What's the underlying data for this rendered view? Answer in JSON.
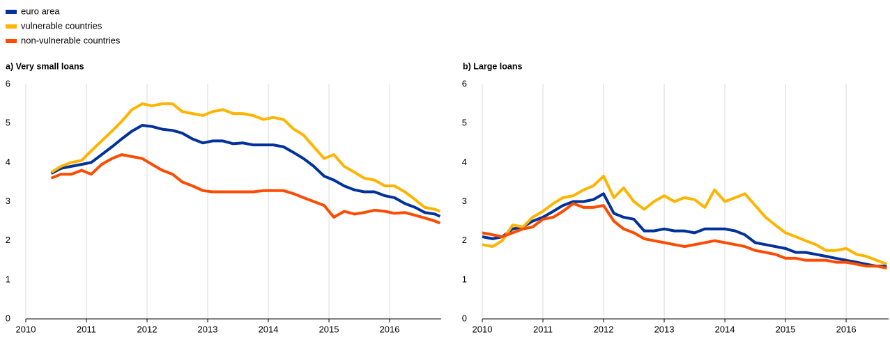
{
  "chart_data": [
    {
      "type": "line",
      "title": "a) Very small loans",
      "x": [
        2010.42,
        2010.58,
        2010.75,
        2010.92,
        2011.08,
        2011.25,
        2011.42,
        2011.58,
        2011.75,
        2011.92,
        2012.08,
        2012.25,
        2012.42,
        2012.58,
        2012.75,
        2012.92,
        2013.08,
        2013.25,
        2013.42,
        2013.58,
        2013.75,
        2013.92,
        2014.08,
        2014.25,
        2014.42,
        2014.58,
        2014.75,
        2014.92,
        2015.08,
        2015.25,
        2015.42,
        2015.58,
        2015.75,
        2015.92,
        2016.08,
        2016.25,
        2016.42,
        2016.58,
        2016.75,
        2016.83
      ],
      "series": [
        {
          "name": "euro area",
          "color": "#003299",
          "values": [
            3.72,
            3.85,
            3.9,
            3.95,
            4.0,
            4.2,
            4.4,
            4.6,
            4.8,
            4.95,
            4.92,
            4.85,
            4.82,
            4.75,
            4.6,
            4.5,
            4.55,
            4.55,
            4.48,
            4.5,
            4.45,
            4.45,
            4.45,
            4.4,
            4.25,
            4.1,
            3.9,
            3.65,
            3.55,
            3.4,
            3.3,
            3.25,
            3.25,
            3.15,
            3.1,
            2.95,
            2.85,
            2.72,
            2.68,
            2.62
          ]
        },
        {
          "name": "vulnerable countries",
          "color": "#ffb400",
          "values": [
            3.75,
            3.9,
            4.0,
            4.05,
            4.3,
            4.55,
            4.8,
            5.05,
            5.35,
            5.5,
            5.45,
            5.5,
            5.5,
            5.3,
            5.25,
            5.2,
            5.3,
            5.35,
            5.25,
            5.25,
            5.2,
            5.1,
            5.15,
            5.1,
            4.85,
            4.7,
            4.4,
            4.1,
            4.2,
            3.9,
            3.75,
            3.6,
            3.55,
            3.4,
            3.4,
            3.25,
            3.05,
            2.85,
            2.8,
            2.75
          ]
        },
        {
          "name": "non-vulnerable countries",
          "color": "#ff4b00",
          "values": [
            3.6,
            3.7,
            3.7,
            3.8,
            3.7,
            3.95,
            4.1,
            4.2,
            4.15,
            4.1,
            3.95,
            3.8,
            3.7,
            3.5,
            3.4,
            3.28,
            3.25,
            3.25,
            3.25,
            3.25,
            3.25,
            3.28,
            3.28,
            3.28,
            3.2,
            3.1,
            3.0,
            2.9,
            2.6,
            2.75,
            2.68,
            2.72,
            2.78,
            2.75,
            2.7,
            2.72,
            2.65,
            2.58,
            2.5,
            2.45
          ]
        }
      ],
      "xlim": [
        2010,
        2016.85
      ],
      "xticks": [
        2010,
        2011,
        2012,
        2013,
        2014,
        2015,
        2016
      ],
      "ylim": [
        0,
        6
      ],
      "yticks": [
        0,
        1,
        2,
        3,
        4,
        5,
        6
      ],
      "grid": true
    },
    {
      "type": "line",
      "title": "b) Large loans",
      "x": [
        2010,
        2010.17,
        2010.33,
        2010.5,
        2010.67,
        2010.83,
        2011,
        2011.17,
        2011.33,
        2011.5,
        2011.67,
        2011.83,
        2012,
        2012.17,
        2012.33,
        2012.5,
        2012.67,
        2012.83,
        2013,
        2013.17,
        2013.33,
        2013.5,
        2013.67,
        2013.83,
        2014,
        2014.17,
        2014.33,
        2014.5,
        2014.67,
        2014.83,
        2015,
        2015.17,
        2015.33,
        2015.5,
        2015.67,
        2015.83,
        2016,
        2016.17,
        2016.33,
        2016.5,
        2016.67
      ],
      "series": [
        {
          "color": "#003299",
          "values": [
            2.1,
            2.05,
            2.1,
            2.3,
            2.35,
            2.5,
            2.6,
            2.75,
            2.9,
            3.0,
            3.0,
            3.05,
            3.2,
            2.7,
            2.6,
            2.55,
            2.25,
            2.25,
            2.3,
            2.25,
            2.25,
            2.2,
            2.3,
            2.3,
            2.3,
            2.25,
            2.15,
            1.95,
            1.9,
            1.85,
            1.8,
            1.7,
            1.7,
            1.65,
            1.6,
            1.55,
            1.5,
            1.45,
            1.4,
            1.35,
            1.35
          ]
        },
        {
          "color": "#ffb400",
          "values": [
            1.9,
            1.85,
            2.0,
            2.4,
            2.35,
            2.6,
            2.75,
            2.95,
            3.1,
            3.15,
            3.3,
            3.4,
            3.65,
            3.1,
            3.35,
            3.0,
            2.8,
            3.0,
            3.15,
            3.0,
            3.1,
            3.05,
            2.85,
            3.3,
            3.0,
            3.1,
            3.2,
            2.9,
            2.6,
            2.4,
            2.2,
            2.1,
            2.0,
            1.9,
            1.75,
            1.75,
            1.8,
            1.65,
            1.6,
            1.5,
            1.4
          ]
        },
        {
          "color": "#ff4b00",
          "values": [
            2.2,
            2.15,
            2.1,
            2.2,
            2.3,
            2.35,
            2.55,
            2.6,
            2.75,
            2.95,
            2.85,
            2.85,
            2.9,
            2.5,
            2.3,
            2.2,
            2.05,
            2.0,
            1.95,
            1.9,
            1.85,
            1.9,
            1.95,
            2.0,
            1.95,
            1.9,
            1.85,
            1.75,
            1.7,
            1.65,
            1.55,
            1.55,
            1.5,
            1.5,
            1.5,
            1.45,
            1.45,
            1.4,
            1.35,
            1.35,
            1.3
          ]
        }
      ],
      "xlim": [
        2010,
        2016.7
      ],
      "xticks": [
        2010,
        2011,
        2012,
        2013,
        2014,
        2015,
        2016
      ],
      "ylim": [
        0,
        6
      ],
      "yticks": [
        0,
        1,
        2,
        3,
        4,
        5,
        6
      ],
      "grid": true
    }
  ]
}
